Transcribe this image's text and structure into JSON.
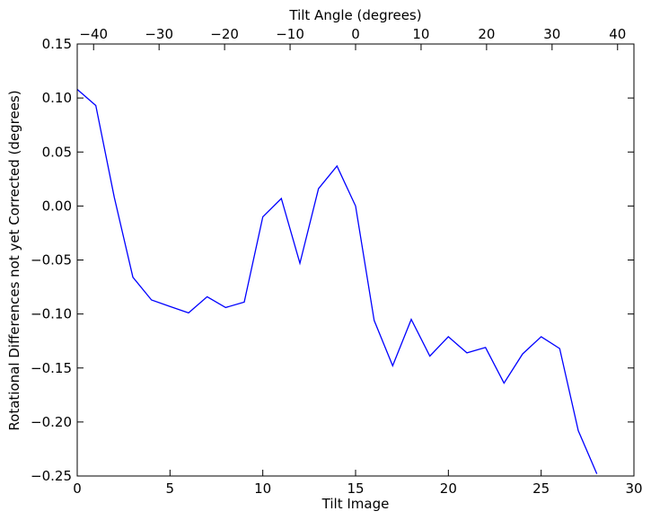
{
  "chart_data": {
    "type": "line",
    "xlabel": "Tilt Image",
    "ylabel": "Rotational Differences not yet Corrected (degrees)",
    "top_xlabel": "Tilt Angle (degrees)",
    "xlim": [
      0,
      30
    ],
    "ylim": [
      -0.25,
      0.15
    ],
    "top_xlim": [
      -42.5,
      42.5
    ],
    "x_ticks": [
      0,
      5,
      10,
      15,
      20,
      25,
      30
    ],
    "x_tick_labels": [
      "0",
      "5",
      "10",
      "15",
      "20",
      "25",
      "30"
    ],
    "y_ticks": [
      0.15,
      0.1,
      0.05,
      0.0,
      -0.05,
      -0.1,
      -0.15,
      -0.2,
      -0.25
    ],
    "y_tick_labels": [
      "0.15",
      "0.10",
      "0.05",
      "0.00",
      "−0.05",
      "−0.10",
      "−0.15",
      "−0.20",
      "−0.25"
    ],
    "top_ticks": [
      -40,
      -30,
      -20,
      -10,
      0,
      10,
      20,
      30,
      40
    ],
    "top_tick_labels": [
      "−40",
      "−30",
      "−20",
      "−10",
      "0",
      "10",
      "20",
      "30",
      "40"
    ],
    "grid": false,
    "series": [
      {
        "color": "#0000ff",
        "x": [
          0,
          1,
          2,
          3,
          4,
          5,
          6,
          7,
          8,
          9,
          10,
          11,
          12,
          13,
          14,
          15,
          16,
          17,
          18,
          19,
          20,
          21,
          22,
          23,
          24,
          25,
          26,
          27,
          28
        ],
        "y": [
          0.108,
          0.093,
          0.008,
          -0.066,
          -0.087,
          -0.093,
          -0.099,
          -0.084,
          -0.094,
          -0.089,
          -0.01,
          0.007,
          -0.053,
          0.016,
          0.037,
          0.0,
          -0.106,
          -0.148,
          -0.105,
          -0.139,
          -0.121,
          -0.136,
          -0.131,
          -0.164,
          -0.137,
          -0.121,
          -0.132,
          -0.208,
          -0.248
        ]
      }
    ]
  }
}
